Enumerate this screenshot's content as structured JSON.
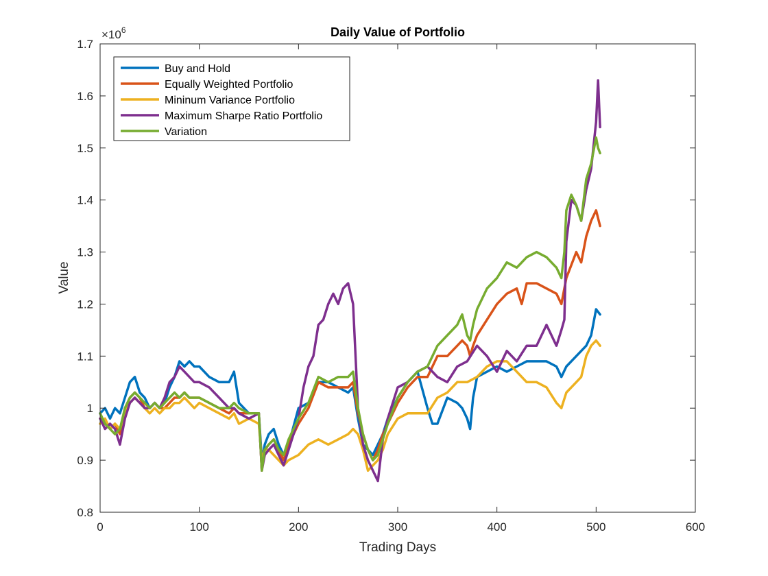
{
  "chart_data": {
    "type": "line",
    "title": "Daily Value of Portfolio",
    "xlabel": "Trading Days",
    "ylabel": "Value",
    "y_exponent_label": "×10",
    "y_exponent_power": "6",
    "xlim": [
      0,
      600
    ],
    "ylim": [
      0.8,
      1.7
    ],
    "x_ticks": [
      0,
      100,
      200,
      300,
      400,
      500,
      600
    ],
    "y_ticks": [
      0.8,
      0.9,
      1,
      1.1,
      1.2,
      1.3,
      1.4,
      1.5,
      1.6,
      1.7
    ],
    "grid": false,
    "legend_position": "top-left",
    "series": [
      {
        "name": "Buy and Hold",
        "color": "#0072BD",
        "x": [
          0,
          5,
          10,
          15,
          20,
          25,
          30,
          35,
          40,
          45,
          50,
          55,
          60,
          65,
          70,
          75,
          80,
          85,
          90,
          95,
          100,
          110,
          120,
          130,
          135,
          140,
          150,
          160,
          163,
          166,
          170,
          175,
          180,
          185,
          190,
          200,
          210,
          220,
          230,
          240,
          250,
          255,
          260,
          265,
          270,
          275,
          280,
          285,
          290,
          300,
          310,
          320,
          330,
          335,
          340,
          350,
          360,
          365,
          370,
          373,
          376,
          380,
          390,
          400,
          410,
          420,
          430,
          440,
          450,
          460,
          465,
          470,
          480,
          490,
          495,
          500,
          504
        ],
        "values": [
          0.99,
          1.0,
          0.98,
          1.0,
          0.99,
          1.02,
          1.05,
          1.06,
          1.03,
          1.02,
          1.0,
          1.01,
          1.0,
          1.01,
          1.04,
          1.06,
          1.09,
          1.08,
          1.09,
          1.08,
          1.08,
          1.06,
          1.05,
          1.05,
          1.07,
          1.01,
          0.99,
          0.99,
          0.9,
          0.93,
          0.95,
          0.96,
          0.93,
          0.91,
          0.93,
          1.0,
          1.01,
          1.05,
          1.05,
          1.04,
          1.03,
          1.04,
          0.98,
          0.93,
          0.92,
          0.91,
          0.93,
          0.95,
          0.98,
          1.02,
          1.05,
          1.07,
          1.0,
          0.97,
          0.97,
          1.02,
          1.01,
          1.0,
          0.98,
          0.96,
          1.02,
          1.06,
          1.07,
          1.08,
          1.07,
          1.08,
          1.09,
          1.09,
          1.09,
          1.08,
          1.06,
          1.08,
          1.1,
          1.12,
          1.14,
          1.19,
          1.18
        ]
      },
      {
        "name": "Equally Weighted Portfolio",
        "color": "#D95319",
        "x": [
          0,
          5,
          10,
          15,
          20,
          25,
          30,
          35,
          40,
          45,
          50,
          55,
          60,
          65,
          70,
          75,
          80,
          85,
          90,
          95,
          100,
          110,
          120,
          130,
          135,
          140,
          150,
          160,
          163,
          166,
          170,
          175,
          180,
          185,
          190,
          200,
          210,
          220,
          230,
          240,
          250,
          255,
          260,
          265,
          270,
          275,
          280,
          285,
          290,
          300,
          310,
          320,
          330,
          340,
          350,
          360,
          365,
          370,
          373,
          376,
          380,
          390,
          400,
          410,
          420,
          425,
          430,
          440,
          450,
          460,
          465,
          470,
          480,
          485,
          490,
          495,
          500,
          504
        ],
        "values": [
          0.98,
          0.97,
          0.96,
          0.97,
          0.95,
          1.0,
          1.02,
          1.03,
          1.02,
          1.0,
          1.0,
          1.01,
          1.0,
          1.0,
          1.01,
          1.02,
          1.02,
          1.03,
          1.02,
          1.02,
          1.02,
          1.01,
          1.0,
          0.99,
          1.0,
          0.99,
          0.99,
          0.99,
          0.88,
          0.92,
          0.93,
          0.94,
          0.92,
          0.9,
          0.93,
          0.97,
          1.0,
          1.05,
          1.04,
          1.04,
          1.04,
          1.05,
          0.99,
          0.95,
          0.92,
          0.9,
          0.92,
          0.95,
          0.97,
          1.01,
          1.04,
          1.06,
          1.06,
          1.1,
          1.1,
          1.12,
          1.13,
          1.12,
          1.1,
          1.12,
          1.14,
          1.17,
          1.2,
          1.22,
          1.23,
          1.2,
          1.24,
          1.24,
          1.23,
          1.22,
          1.2,
          1.25,
          1.3,
          1.28,
          1.33,
          1.36,
          1.38,
          1.35
        ]
      },
      {
        "name": "Mininum Variance Portfolio",
        "color": "#EDB120",
        "x": [
          0,
          5,
          10,
          15,
          20,
          25,
          30,
          35,
          40,
          45,
          50,
          55,
          60,
          65,
          70,
          75,
          80,
          85,
          90,
          95,
          100,
          110,
          120,
          130,
          135,
          140,
          150,
          160,
          163,
          166,
          170,
          175,
          180,
          185,
          190,
          200,
          210,
          220,
          230,
          240,
          250,
          255,
          260,
          265,
          270,
          275,
          280,
          285,
          290,
          300,
          310,
          320,
          330,
          340,
          350,
          360,
          370,
          380,
          390,
          400,
          410,
          420,
          430,
          440,
          450,
          460,
          465,
          470,
          480,
          485,
          490,
          495,
          500,
          504
        ],
        "values": [
          0.97,
          0.98,
          0.96,
          0.97,
          0.96,
          0.99,
          1.01,
          1.02,
          1.01,
          1.0,
          0.99,
          1.0,
          0.99,
          1.0,
          1.0,
          1.01,
          1.01,
          1.02,
          1.01,
          1.0,
          1.01,
          1.0,
          0.99,
          0.98,
          0.99,
          0.97,
          0.98,
          0.97,
          0.9,
          0.92,
          0.92,
          0.91,
          0.9,
          0.89,
          0.9,
          0.91,
          0.93,
          0.94,
          0.93,
          0.94,
          0.95,
          0.96,
          0.95,
          0.92,
          0.88,
          0.89,
          0.9,
          0.92,
          0.95,
          0.98,
          0.99,
          0.99,
          0.99,
          1.02,
          1.03,
          1.05,
          1.05,
          1.06,
          1.08,
          1.09,
          1.09,
          1.07,
          1.05,
          1.05,
          1.04,
          1.01,
          1.0,
          1.03,
          1.05,
          1.06,
          1.1,
          1.12,
          1.13,
          1.12
        ]
      },
      {
        "name": "Maximum Sharpe Ratio Portfolio",
        "color": "#7E2F8E",
        "x": [
          0,
          5,
          10,
          15,
          20,
          25,
          30,
          35,
          40,
          45,
          50,
          55,
          60,
          65,
          70,
          75,
          80,
          85,
          90,
          95,
          100,
          110,
          120,
          130,
          135,
          140,
          150,
          160,
          163,
          166,
          170,
          175,
          180,
          185,
          190,
          200,
          205,
          210,
          215,
          220,
          225,
          230,
          235,
          240,
          245,
          250,
          255,
          260,
          265,
          270,
          275,
          280,
          285,
          290,
          300,
          310,
          320,
          330,
          340,
          350,
          360,
          370,
          380,
          390,
          400,
          410,
          420,
          430,
          440,
          450,
          460,
          465,
          468,
          470,
          475,
          480,
          485,
          490,
          495,
          500,
          502,
          504
        ],
        "values": [
          0.98,
          0.96,
          0.97,
          0.96,
          0.93,
          0.98,
          1.01,
          1.02,
          1.01,
          1.0,
          1.0,
          1.01,
          1.0,
          1.02,
          1.05,
          1.06,
          1.08,
          1.07,
          1.06,
          1.05,
          1.05,
          1.04,
          1.02,
          1.0,
          1.0,
          0.99,
          0.98,
          0.99,
          0.88,
          0.91,
          0.92,
          0.93,
          0.91,
          0.89,
          0.92,
          0.98,
          1.04,
          1.08,
          1.1,
          1.16,
          1.17,
          1.2,
          1.22,
          1.2,
          1.23,
          1.24,
          1.2,
          1.0,
          0.93,
          0.9,
          0.88,
          0.86,
          0.94,
          0.98,
          1.04,
          1.05,
          1.07,
          1.08,
          1.06,
          1.05,
          1.08,
          1.09,
          1.12,
          1.1,
          1.07,
          1.11,
          1.09,
          1.12,
          1.12,
          1.16,
          1.12,
          1.15,
          1.17,
          1.32,
          1.4,
          1.39,
          1.36,
          1.42,
          1.46,
          1.55,
          1.63,
          1.54
        ]
      },
      {
        "name": "Variation",
        "color": "#77AC30",
        "x": [
          0,
          5,
          10,
          15,
          20,
          25,
          30,
          35,
          40,
          45,
          50,
          55,
          60,
          65,
          70,
          75,
          80,
          85,
          90,
          95,
          100,
          110,
          120,
          130,
          135,
          140,
          150,
          160,
          163,
          166,
          170,
          175,
          180,
          185,
          190,
          200,
          210,
          220,
          230,
          240,
          250,
          255,
          260,
          265,
          270,
          275,
          280,
          285,
          290,
          300,
          310,
          320,
          330,
          340,
          350,
          360,
          365,
          370,
          373,
          376,
          380,
          390,
          400,
          410,
          420,
          430,
          440,
          450,
          460,
          465,
          468,
          470,
          475,
          480,
          485,
          490,
          495,
          500,
          502,
          504
        ],
        "values": [
          0.99,
          0.97,
          0.96,
          0.95,
          0.96,
          1.0,
          1.02,
          1.03,
          1.02,
          1.01,
          1.0,
          1.01,
          1.0,
          1.01,
          1.02,
          1.03,
          1.02,
          1.03,
          1.02,
          1.02,
          1.02,
          1.01,
          1.0,
          1.0,
          1.01,
          1.0,
          0.99,
          0.99,
          0.88,
          0.92,
          0.93,
          0.94,
          0.92,
          0.91,
          0.94,
          0.98,
          1.01,
          1.06,
          1.05,
          1.06,
          1.06,
          1.07,
          1.0,
          0.95,
          0.92,
          0.9,
          0.91,
          0.94,
          0.97,
          1.02,
          1.05,
          1.07,
          1.08,
          1.12,
          1.14,
          1.16,
          1.18,
          1.14,
          1.13,
          1.16,
          1.19,
          1.23,
          1.25,
          1.28,
          1.27,
          1.29,
          1.3,
          1.29,
          1.27,
          1.25,
          1.3,
          1.38,
          1.41,
          1.39,
          1.36,
          1.44,
          1.47,
          1.52,
          1.5,
          1.49
        ]
      }
    ]
  }
}
